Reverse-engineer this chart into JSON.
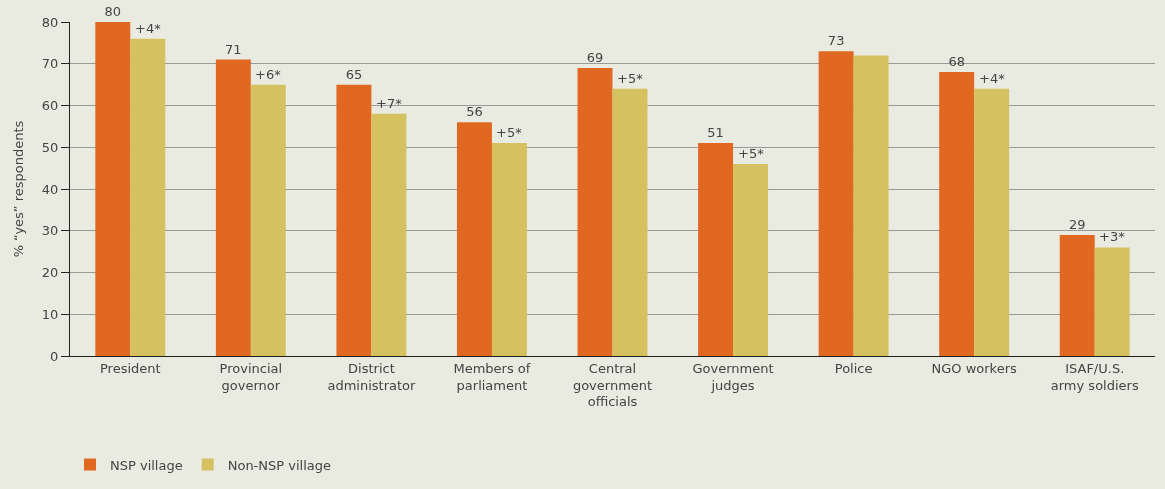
{
  "chart_data": {
    "type": "bar",
    "ylabel": "% “yes” respondents",
    "categories": [
      "President",
      "Provincial governor",
      "District administrator",
      "Members of parliament",
      "Central government officials",
      "Government judges",
      "Police",
      "NGO workers",
      "ISAF/U.S. army soldiers"
    ],
    "series": [
      {
        "name": "NSP village",
        "color": "#e06820",
        "values": [
          80,
          71,
          65,
          56,
          69,
          51,
          73,
          68,
          29
        ],
        "value_labels": [
          "80",
          "71",
          "65",
          "56",
          "69",
          "51",
          "73",
          "68",
          "29"
        ]
      },
      {
        "name": "Non-NSP village",
        "color": "#d6c160",
        "values": [
          76,
          65,
          58,
          51,
          64,
          46,
          72,
          64,
          26
        ]
      }
    ],
    "annotations": [
      {
        "text": "+4*",
        "x": "President",
        "y": 76
      },
      {
        "text": "+6*",
        "x": "Provincial governor",
        "y": 65
      },
      {
        "text": "+7*",
        "x": "District administrator",
        "y": 58
      },
      {
        "text": "+5*",
        "x": "Members of parliament",
        "y": 51
      },
      {
        "text": "+5*",
        "x": "Central government officials",
        "y": 64
      },
      {
        "text": "+5*",
        "x": "Government judges",
        "y": 46
      },
      {
        "text": "+4*",
        "x": "NGO workers",
        "y": 64
      },
      {
        "text": "+3*",
        "x": "ISAF/U.S. army soldiers",
        "y": 26
      }
    ],
    "ylim": [
      0,
      80
    ],
    "yticks": [
      0,
      10,
      20,
      30,
      40,
      50,
      60,
      70,
      80
    ],
    "grid": "y",
    "legend": "bottom left"
  }
}
